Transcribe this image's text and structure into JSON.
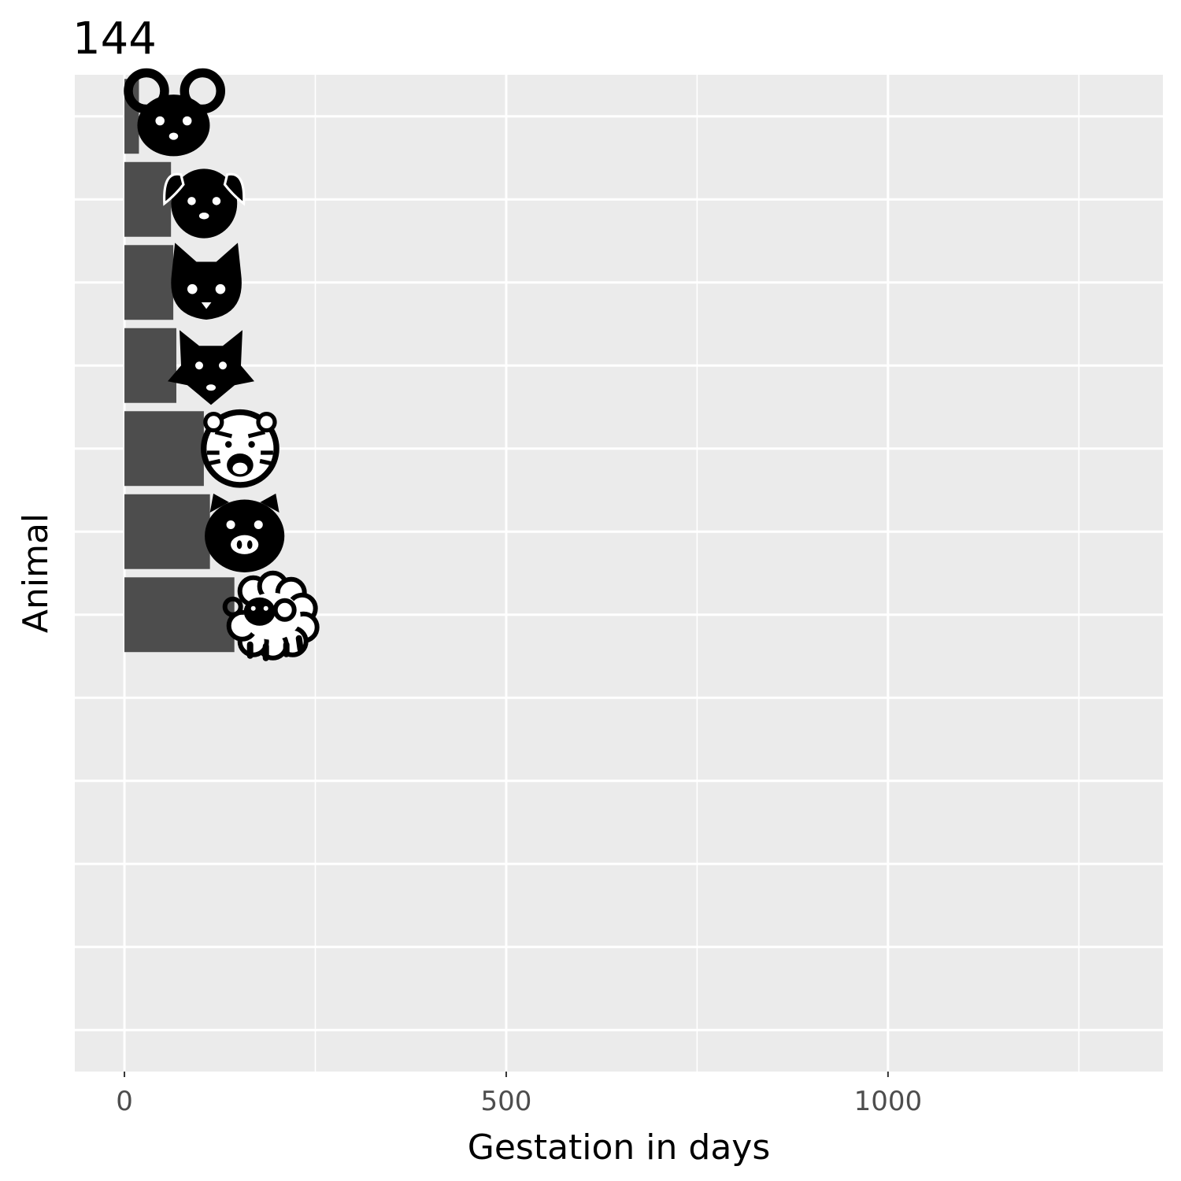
{
  "chart_data": {
    "type": "bar",
    "orientation": "horizontal",
    "title": "144",
    "xlabel": "Gestation in days",
    "ylabel": "Animal",
    "xlim": [
      -65,
      1360
    ],
    "x_ticks": [
      0,
      500,
      1000
    ],
    "x_tick_labels": [
      "0",
      "500",
      "1000"
    ],
    "grid": true,
    "legend": "none",
    "slots": 12,
    "categories": [
      "mouse",
      "dog",
      "cat",
      "wolf",
      "tiger",
      "pig",
      "sheep"
    ],
    "icons": [
      "mouse-icon",
      "dog-icon",
      "cat-icon",
      "wolf-icon",
      "tiger-icon",
      "pig-icon",
      "sheep-icon"
    ],
    "values": [
      19,
      61,
      64,
      68,
      104,
      112,
      144
    ],
    "colors": {
      "bar": "#4d4d4d",
      "panel": "#ebebeb",
      "grid": "#ffffff",
      "icon": "#000000"
    }
  }
}
